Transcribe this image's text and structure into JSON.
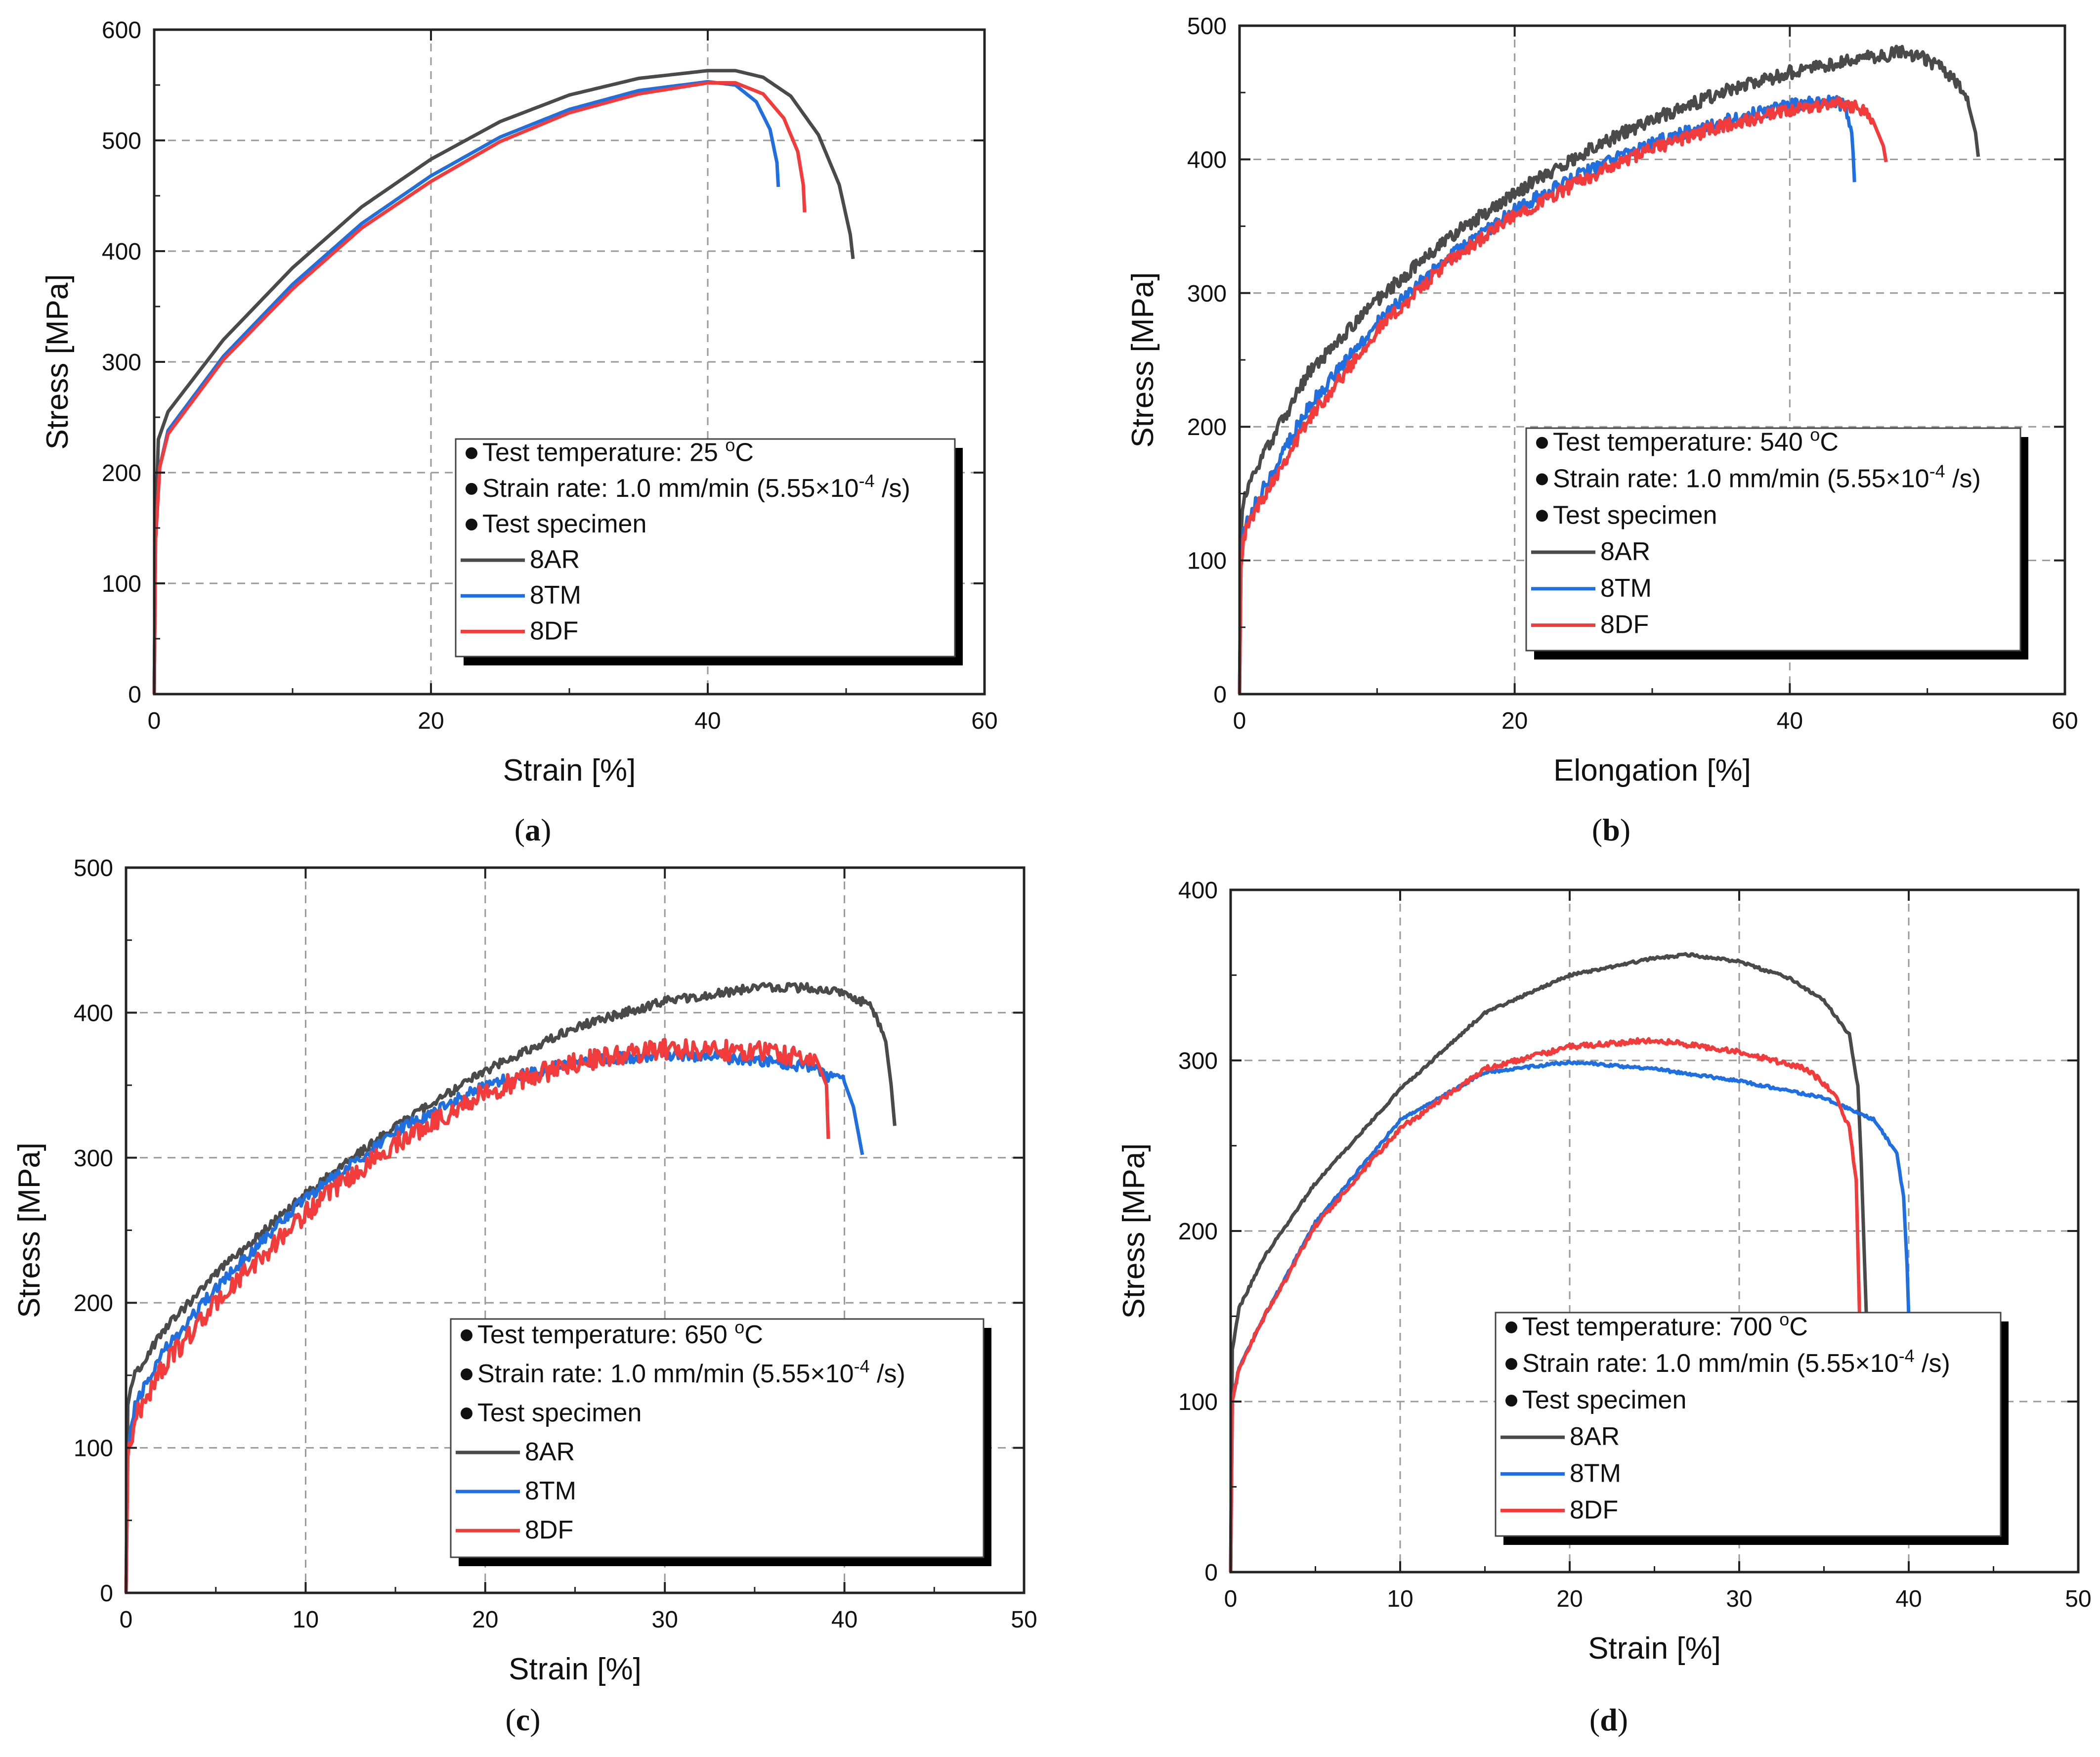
{
  "panel_labels": [
    "a",
    "b",
    "c",
    "d"
  ],
  "colors": {
    "8AR": "#4a4a4a",
    "8TM": "#1f6fe0",
    "8DF": "#f23b3b",
    "grid": "#9a9a9a",
    "axis": "#222222"
  },
  "chart_data": [
    {
      "id": "a",
      "type": "line",
      "title": "",
      "xlabel": "Strain [%]",
      "ylabel": "Stress [MPa]",
      "xlim": [
        0,
        60
      ],
      "ylim": [
        0,
        600
      ],
      "xticks": [
        0,
        20,
        40,
        60
      ],
      "yticks": [
        0,
        100,
        200,
        300,
        400,
        500,
        600
      ],
      "grid": true,
      "legend_position": "bottom-right",
      "legend": {
        "lines": [
          {
            "text": "Test temperature: 25 ",
            "sup": "o",
            "after": "C"
          },
          {
            "text": "Strain rate: 1.0 mm/min (5.55×10",
            "sup": "-4",
            "after": " /s)"
          },
          {
            "text": "Test specimen",
            "sup": "",
            "after": ""
          }
        ],
        "entries": [
          "8AR",
          "8TM",
          "8DF"
        ]
      },
      "series": [
        {
          "name": "8AR",
          "noise": 0,
          "points": [
            [
              0,
              0
            ],
            [
              0.1,
              150
            ],
            [
              0.3,
              230
            ],
            [
              1,
              255
            ],
            [
              5,
              320
            ],
            [
              10,
              385
            ],
            [
              15,
              440
            ],
            [
              20,
              483
            ],
            [
              25,
              517
            ],
            [
              30,
              541
            ],
            [
              35,
              556
            ],
            [
              40,
              563
            ],
            [
              42,
              563
            ],
            [
              44,
              557
            ],
            [
              46,
              540
            ],
            [
              48,
              505
            ],
            [
              49.5,
              460
            ],
            [
              50.3,
              415
            ],
            [
              50.5,
              393
            ]
          ]
        },
        {
          "name": "8TM",
          "noise": 0,
          "points": [
            [
              0,
              0
            ],
            [
              0.1,
              140
            ],
            [
              0.4,
              205
            ],
            [
              1,
              238
            ],
            [
              5,
              305
            ],
            [
              10,
              370
            ],
            [
              15,
              425
            ],
            [
              20,
              468
            ],
            [
              25,
              503
            ],
            [
              30,
              528
            ],
            [
              35,
              545
            ],
            [
              40,
              553
            ],
            [
              42,
              550
            ],
            [
              43.5,
              535
            ],
            [
              44.5,
              510
            ],
            [
              45,
              480
            ],
            [
              45.1,
              458
            ]
          ]
        },
        {
          "name": "8DF",
          "noise": 0,
          "points": [
            [
              0,
              0
            ],
            [
              0.1,
              140
            ],
            [
              0.4,
              205
            ],
            [
              1,
              235
            ],
            [
              5,
              302
            ],
            [
              10,
              366
            ],
            [
              15,
              421
            ],
            [
              20,
              463
            ],
            [
              25,
              499
            ],
            [
              30,
              525
            ],
            [
              35,
              542
            ],
            [
              40,
              552
            ],
            [
              42,
              552
            ],
            [
              44,
              542
            ],
            [
              45.5,
              520
            ],
            [
              46.5,
              490
            ],
            [
              46.9,
              460
            ],
            [
              47,
              435
            ]
          ]
        }
      ]
    },
    {
      "id": "b",
      "type": "line",
      "title": "",
      "xlabel": "Elongation [%]",
      "ylabel": "Stress [MPa]",
      "xlim": [
        0,
        60
      ],
      "ylim": [
        0,
        500
      ],
      "xticks": [
        0,
        20,
        40,
        60
      ],
      "yticks": [
        0,
        100,
        200,
        300,
        400,
        500
      ],
      "grid": true,
      "legend_position": "bottom-right",
      "legend": {
        "lines": [
          {
            "text": "Test temperature: 540 ",
            "sup": "o",
            "after": "C"
          },
          {
            "text": "Strain rate: 1.0 mm/min (5.55×10",
            "sup": "-4",
            "after": " /s)"
          },
          {
            "text": "Test specimen",
            "sup": "",
            "after": ""
          }
        ],
        "entries": [
          "8AR",
          "8TM",
          "8DF"
        ]
      },
      "series": [
        {
          "name": "8AR",
          "noise": 5,
          "points": [
            [
              0,
              0
            ],
            [
              0.1,
              120
            ],
            [
              0.3,
              145
            ],
            [
              1,
              165
            ],
            [
              5,
              240
            ],
            [
              10,
              295
            ],
            [
              15,
              340
            ],
            [
              20,
              375
            ],
            [
              25,
              405
            ],
            [
              30,
              430
            ],
            [
              35,
              450
            ],
            [
              40,
              465
            ],
            [
              45,
              475
            ],
            [
              48,
              480
            ],
            [
              50,
              475
            ],
            [
              52,
              460
            ],
            [
              53,
              440
            ],
            [
              53.5,
              420
            ],
            [
              53.7,
              402
            ]
          ]
        },
        {
          "name": "8TM",
          "noise": 5,
          "points": [
            [
              0,
              0
            ],
            [
              0.1,
              100
            ],
            [
              0.3,
              120
            ],
            [
              1,
              140
            ],
            [
              5,
              215
            ],
            [
              10,
              278
            ],
            [
              15,
              325
            ],
            [
              20,
              362
            ],
            [
              25,
              390
            ],
            [
              30,
              412
            ],
            [
              35,
              428
            ],
            [
              40,
              440
            ],
            [
              43,
              445
            ],
            [
              44,
              440
            ],
            [
              44.5,
              420
            ],
            [
              44.6,
              405
            ],
            [
              44.7,
              383
            ]
          ]
        },
        {
          "name": "8DF",
          "noise": 5,
          "points": [
            [
              0,
              0
            ],
            [
              0.1,
              100
            ],
            [
              0.3,
              118
            ],
            [
              1,
              135
            ],
            [
              5,
              205
            ],
            [
              10,
              272
            ],
            [
              15,
              322
            ],
            [
              20,
              358
            ],
            [
              25,
              385
            ],
            [
              30,
              408
            ],
            [
              35,
              425
            ],
            [
              40,
              436
            ],
            [
              43,
              442
            ],
            [
              45,
              440
            ],
            [
              46,
              430
            ],
            [
              46.8,
              410
            ],
            [
              47,
              398
            ]
          ]
        }
      ]
    },
    {
      "id": "c",
      "type": "line",
      "title": "",
      "xlabel": "Strain [%]",
      "ylabel": "Stress [MPa]",
      "xlim": [
        0,
        50
      ],
      "ylim": [
        0,
        500
      ],
      "xticks": [
        0,
        10,
        20,
        30,
        40,
        50
      ],
      "yticks": [
        0,
        100,
        200,
        300,
        400,
        500
      ],
      "grid": true,
      "legend_position": "bottom-right",
      "legend": {
        "lines": [
          {
            "text": "Test temperature: 650 ",
            "sup": "o",
            "after": "C"
          },
          {
            "text": "Strain rate: 1.0 mm/min (5.55×10",
            "sup": "-4",
            "after": " /s)"
          },
          {
            "text": "Test specimen",
            "sup": "",
            "after": ""
          }
        ],
        "entries": [
          "8AR",
          "8TM",
          "8DF"
        ]
      },
      "series": [
        {
          "name": "8AR",
          "noise": 3,
          "points": [
            [
              0,
              0
            ],
            [
              0.1,
              130
            ],
            [
              0.5,
              150
            ],
            [
              2,
              180
            ],
            [
              5,
              220
            ],
            [
              10,
              275
            ],
            [
              15,
              322
            ],
            [
              20,
              360
            ],
            [
              25,
              390
            ],
            [
              30,
              408
            ],
            [
              35,
              417
            ],
            [
              38,
              417
            ],
            [
              40,
              413
            ],
            [
              41.5,
              405
            ],
            [
              42.3,
              380
            ],
            [
              42.6,
              350
            ],
            [
              42.8,
              322
            ]
          ]
        },
        {
          "name": "8TM",
          "noise": 4,
          "points": [
            [
              0,
              0
            ],
            [
              0.1,
              100
            ],
            [
              0.5,
              130
            ],
            [
              2,
              165
            ],
            [
              5,
              210
            ],
            [
              10,
              272
            ],
            [
              15,
              318
            ],
            [
              20,
              350
            ],
            [
              25,
              366
            ],
            [
              30,
              371
            ],
            [
              35,
              368
            ],
            [
              38,
              362
            ],
            [
              40,
              352
            ],
            [
              40.5,
              335
            ],
            [
              41,
              302
            ]
          ]
        },
        {
          "name": "8DF",
          "noise": 7,
          "points": [
            [
              0,
              0
            ],
            [
              0.1,
              95
            ],
            [
              0.5,
              120
            ],
            [
              2,
              155
            ],
            [
              5,
              200
            ],
            [
              10,
              262
            ],
            [
              15,
              310
            ],
            [
              20,
              345
            ],
            [
              25,
              366
            ],
            [
              30,
              375
            ],
            [
              35,
              374
            ],
            [
              37,
              371
            ],
            [
              38.5,
              366
            ],
            [
              39,
              350
            ],
            [
              39.1,
              313
            ]
          ]
        }
      ]
    },
    {
      "id": "d",
      "type": "line",
      "title": "",
      "xlabel": "Strain [%]",
      "ylabel": "Stress [MPa]",
      "xlim": [
        0,
        50
      ],
      "ylim": [
        0,
        400
      ],
      "xticks": [
        0,
        10,
        20,
        30,
        40,
        50
      ],
      "yticks": [
        0,
        100,
        200,
        300,
        400
      ],
      "grid": true,
      "legend_position": "bottom-left",
      "legend": {
        "lines": [
          {
            "text": "Test temperature: 700 ",
            "sup": "o",
            "after": "C"
          },
          {
            "text": "Strain rate: 1.0 mm/min (5.55×10",
            "sup": "-4",
            "after": " /s)"
          },
          {
            "text": "Test specimen",
            "sup": "",
            "after": ""
          }
        ],
        "entries": [
          "8AR",
          "8TM",
          "8DF"
        ]
      },
      "series": [
        {
          "name": "8AR",
          "noise": 0.8,
          "points": [
            [
              0,
              0
            ],
            [
              0.1,
              130
            ],
            [
              0.5,
              155
            ],
            [
              2,
              185
            ],
            [
              5,
              228
            ],
            [
              10,
              283
            ],
            [
              15,
              328
            ],
            [
              20,
              350
            ],
            [
              25,
              360
            ],
            [
              27,
              362
            ],
            [
              30,
              358
            ],
            [
              33,
              348
            ],
            [
              35,
              335
            ],
            [
              36.5,
              315
            ],
            [
              37,
              285
            ],
            [
              37.2,
              240
            ],
            [
              37.4,
              180
            ],
            [
              37.5,
              150
            ]
          ]
        },
        {
          "name": "8TM",
          "noise": 0.8,
          "points": [
            [
              0,
              0
            ],
            [
              0.1,
              100
            ],
            [
              0.5,
              120
            ],
            [
              2,
              150
            ],
            [
              5,
              205
            ],
            [
              10,
              265
            ],
            [
              15,
              293
            ],
            [
              20,
              299
            ],
            [
              25,
              295
            ],
            [
              30,
              288
            ],
            [
              35,
              278
            ],
            [
              38,
              265
            ],
            [
              39.3,
              245
            ],
            [
              39.7,
              220
            ],
            [
              39.9,
              180
            ],
            [
              40,
              150
            ]
          ]
        },
        {
          "name": "8DF",
          "noise": 1.5,
          "points": [
            [
              0,
              0
            ],
            [
              0.1,
              100
            ],
            [
              0.5,
              120
            ],
            [
              2,
              150
            ],
            [
              5,
              203
            ],
            [
              10,
              260
            ],
            [
              15,
              295
            ],
            [
              20,
              308
            ],
            [
              25,
              312
            ],
            [
              30,
              305
            ],
            [
              34,
              295
            ],
            [
              35.7,
              280
            ],
            [
              36.5,
              260
            ],
            [
              36.9,
              230
            ],
            [
              37,
              190
            ],
            [
              37.1,
              150
            ]
          ]
        }
      ]
    }
  ]
}
